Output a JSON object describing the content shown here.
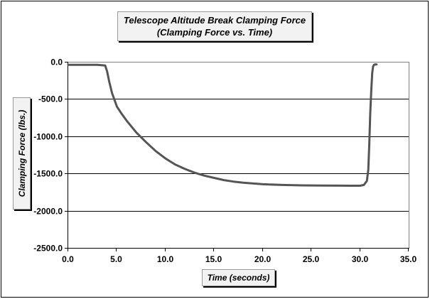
{
  "chart_data": {
    "type": "line",
    "title": "Telescope Altitude Break Clamping Force",
    "subtitle": "(Clamping Force vs. Time)",
    "xlabel": "Time (seconds)",
    "ylabel": "Clamping Force (lbs.)",
    "xlim": [
      0,
      35
    ],
    "ylim": [
      -2500,
      0
    ],
    "xticks": [
      0,
      5,
      10,
      15,
      20,
      25,
      30,
      35
    ],
    "yticks": [
      0,
      -500,
      -1000,
      -1500,
      -2000,
      -2500
    ],
    "xtick_labels": [
      "0.0",
      "5.0",
      "10.0",
      "15.0",
      "20.0",
      "25.0",
      "30.0",
      "35.0"
    ],
    "ytick_labels": [
      "0.0",
      "-500.0",
      "-1000.0",
      "-1500.0",
      "-2000.0",
      "-2500.0"
    ],
    "grid": "horizontal major gridlines",
    "legend": "none",
    "series": [
      {
        "color": "#555555",
        "x": [
          0,
          1.0,
          2.0,
          3.0,
          3.8,
          4.0,
          4.2,
          4.5,
          5.0,
          5.5,
          6.0,
          7.0,
          8.0,
          9.0,
          10.0,
          11.0,
          12.0,
          13.0,
          14.0,
          15.0,
          16.0,
          17.0,
          18.0,
          20.0,
          22.0,
          24.0,
          26.0,
          28.0,
          29.0,
          30.0,
          30.4,
          30.7,
          30.85,
          30.95,
          31.05,
          31.15,
          31.25,
          31.35,
          31.45,
          31.55,
          31.7
        ],
        "y": [
          -40,
          -40,
          -40,
          -40,
          -50,
          -130,
          -260,
          -420,
          -600,
          -700,
          -790,
          -950,
          -1080,
          -1200,
          -1300,
          -1380,
          -1440,
          -1490,
          -1530,
          -1560,
          -1590,
          -1610,
          -1625,
          -1645,
          -1655,
          -1660,
          -1662,
          -1664,
          -1665,
          -1665,
          -1655,
          -1600,
          -1450,
          -1100,
          -700,
          -400,
          -150,
          -60,
          -40,
          -35,
          -35
        ]
      }
    ]
  }
}
